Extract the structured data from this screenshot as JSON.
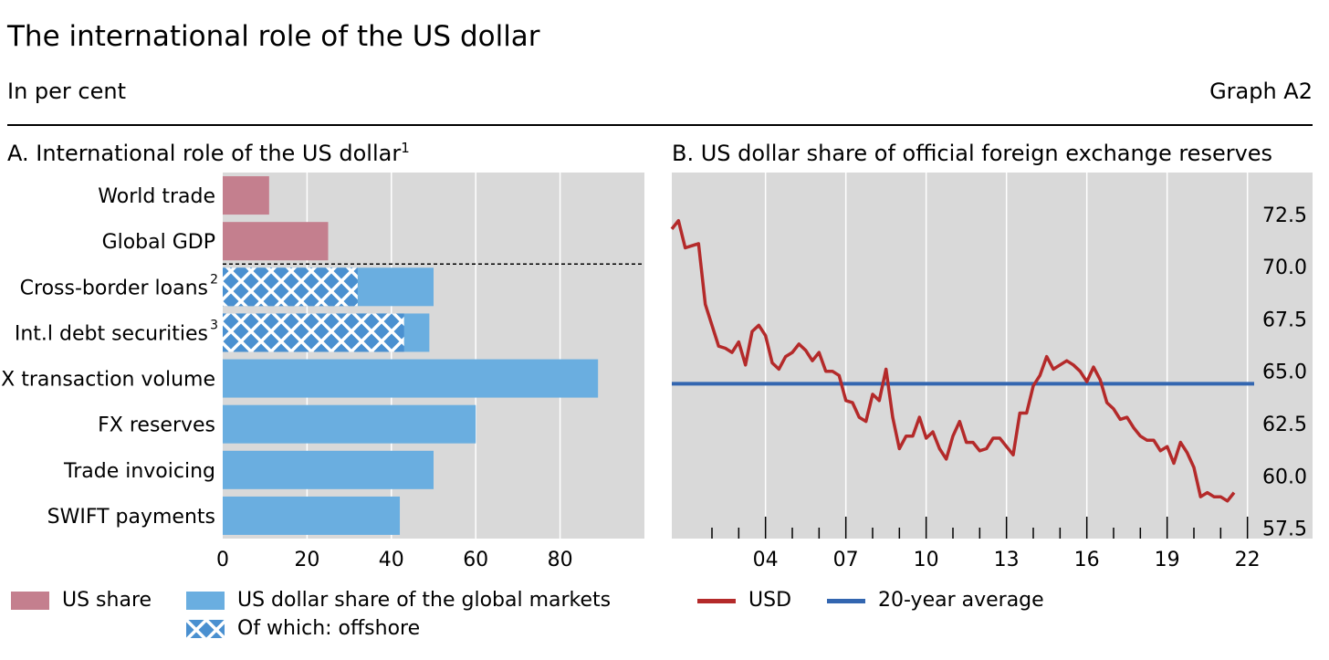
{
  "header": {
    "title": "The international role of the US dollar",
    "subtitle": "In per cent",
    "graph_id": "Graph A2"
  },
  "colors": {
    "us_share": "#c47f8e",
    "usd_global": "#6aaee0",
    "offshore_pattern": "#4a90d0",
    "usd_line": "#b42a2a",
    "average_line": "#3366b0",
    "plot_bg": "#d9d9d9"
  },
  "panelA": {
    "title": "A. International role of the US dollar",
    "title_sup": "1",
    "legend": {
      "us_share": "US share",
      "usd_global": "US dollar share of the global markets",
      "offshore": "Of which: offshore"
    }
  },
  "panelB": {
    "title": "B. US dollar share of official foreign exchange reserves",
    "legend": {
      "usd": "USD",
      "average": "20-year average"
    }
  },
  "chart_data": [
    {
      "type": "bar",
      "orientation": "horizontal",
      "title": "A. International role of the US dollar",
      "categories": [
        "World trade",
        "Global GDP",
        "Cross-border loans",
        "Int.l debt securities",
        "FX transaction volume",
        "FX reserves",
        "Trade invoicing",
        "SWIFT payments"
      ],
      "category_sups": [
        "",
        "",
        "2",
        "3",
        "",
        "",
        "",
        ""
      ],
      "series": [
        {
          "name": "US share",
          "values": [
            11,
            25,
            null,
            null,
            null,
            null,
            null,
            null
          ]
        },
        {
          "name": "US dollar share of the global markets",
          "values": [
            null,
            null,
            50,
            49,
            89,
            60,
            50,
            42
          ]
        },
        {
          "name": "Of which: offshore",
          "values": [
            null,
            null,
            32,
            43,
            null,
            null,
            null,
            null
          ]
        }
      ],
      "xlim": [
        0,
        100
      ],
      "xticks": [
        0,
        20,
        40,
        60,
        80
      ],
      "grid": true,
      "legend_position": "bottom"
    },
    {
      "type": "line",
      "title": "B. US dollar share of official foreign exchange reserves",
      "x_ticks": [
        "04",
        "07",
        "10",
        "13",
        "16",
        "19",
        "22"
      ],
      "x_range": [
        2001.0,
        2022.75
      ],
      "ylim": [
        57.0,
        74.5
      ],
      "yticks": [
        57.5,
        60.0,
        62.5,
        65.0,
        67.5,
        70.0,
        72.5
      ],
      "y_axis_side": "right",
      "grid": true,
      "legend_position": "bottom",
      "series": [
        {
          "name": "USD",
          "x": [
            2001.0,
            2001.25,
            2001.5,
            2001.75,
            2002.0,
            2002.25,
            2002.5,
            2002.75,
            2003.0,
            2003.25,
            2003.5,
            2003.75,
            2004.0,
            2004.25,
            2004.5,
            2004.75,
            2005.0,
            2005.25,
            2005.5,
            2005.75,
            2006.0,
            2006.25,
            2006.5,
            2006.75,
            2007.0,
            2007.25,
            2007.5,
            2007.75,
            2008.0,
            2008.25,
            2008.5,
            2008.75,
            2009.0,
            2009.25,
            2009.5,
            2009.75,
            2010.0,
            2010.25,
            2010.5,
            2010.75,
            2011.0,
            2011.25,
            2011.5,
            2011.75,
            2012.0,
            2012.25,
            2012.5,
            2012.75,
            2013.0,
            2013.25,
            2013.5,
            2013.75,
            2014.0,
            2014.25,
            2014.5,
            2014.75,
            2015.0,
            2015.25,
            2015.5,
            2015.75,
            2016.0,
            2016.25,
            2016.5,
            2016.75,
            2017.0,
            2017.25,
            2017.5,
            2017.75,
            2018.0,
            2018.25,
            2018.5,
            2018.75,
            2019.0,
            2019.25,
            2019.5,
            2019.75,
            2020.0,
            2020.25,
            2020.5,
            2020.75,
            2021.0,
            2021.25,
            2021.5,
            2021.75,
            2022.0
          ],
          "y": [
            71.8,
            72.2,
            70.9,
            71.0,
            71.1,
            68.2,
            67.2,
            66.2,
            66.1,
            65.9,
            66.4,
            65.3,
            66.9,
            67.2,
            66.7,
            65.4,
            65.1,
            65.7,
            65.9,
            66.3,
            66.0,
            65.5,
            65.9,
            65.0,
            65.0,
            64.8,
            63.6,
            63.5,
            62.8,
            62.6,
            63.9,
            63.6,
            65.1,
            62.8,
            61.3,
            61.9,
            61.9,
            62.8,
            61.8,
            62.1,
            61.3,
            60.8,
            61.9,
            62.6,
            61.6,
            61.6,
            61.2,
            61.3,
            61.8,
            61.8,
            61.4,
            61.0,
            63.0,
            63.0,
            64.3,
            64.8,
            65.7,
            65.1,
            65.3,
            65.5,
            65.3,
            65.0,
            64.5,
            65.2,
            64.6,
            63.5,
            63.2,
            62.7,
            62.8,
            62.3,
            61.9,
            61.7,
            61.7,
            61.2,
            61.4,
            60.6,
            61.6,
            61.1,
            60.4,
            59.0,
            59.2,
            59.0,
            59.0,
            58.8,
            59.2
          ]
        },
        {
          "name": "20-year average",
          "x": [
            2001.0,
            2022.75
          ],
          "y": [
            64.4,
            64.4
          ]
        }
      ]
    }
  ]
}
